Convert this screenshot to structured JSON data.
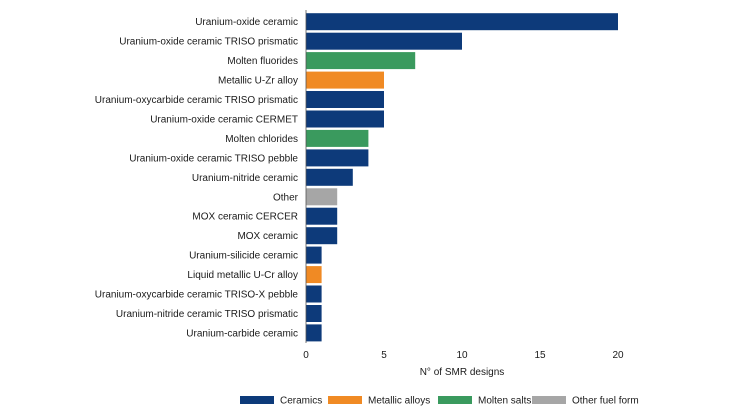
{
  "chart_data": {
    "type": "bar",
    "orientation": "horizontal",
    "categories": [
      "Uranium-oxide ceramic",
      "Uranium-oxide ceramic TRISO prismatic",
      "Molten fluorides",
      "Metallic U-Zr alloy",
      "Uranium-oxycarbide ceramic TRISO prismatic",
      "Uranium-oxide ceramic CERMET",
      "Molten chlorides",
      "Uranium-oxide ceramic TRISO pebble",
      "Uranium-nitride ceramic",
      "Other",
      "MOX ceramic CERCER",
      "MOX ceramic",
      "Uranium-silicide ceramic",
      "Liquid metallic U-Cr alloy",
      "Uranium-oxycarbide ceramic TRISO-X pebble",
      "Uranium-nitride ceramic TRISO prismatic",
      "Uranium-carbide ceramic"
    ],
    "values": [
      20,
      10,
      7,
      5,
      5,
      5,
      4,
      4,
      3,
      2,
      2,
      2,
      1,
      1,
      1,
      1,
      1
    ],
    "groups": [
      "Ceramics",
      "Ceramics",
      "Molten salts",
      "Metallic alloys",
      "Ceramics",
      "Ceramics",
      "Molten salts",
      "Ceramics",
      "Ceramics",
      "Other fuel form",
      "Ceramics",
      "Ceramics",
      "Ceramics",
      "Metallic alloys",
      "Ceramics",
      "Ceramics",
      "Ceramics"
    ],
    "legend": [
      {
        "name": "Ceramics",
        "color": "#0d3a7a"
      },
      {
        "name": "Metallic alloys",
        "color": "#f08a24"
      },
      {
        "name": "Molten salts",
        "color": "#3a9a5e"
      },
      {
        "name": "Other fuel form",
        "color": "#a6a6a6"
      }
    ],
    "xlabel": "N° of SMR designs",
    "xlim": [
      0,
      20
    ],
    "xticks": [
      0,
      5,
      10,
      15,
      20
    ],
    "grid": false,
    "legend_position": "bottom"
  }
}
